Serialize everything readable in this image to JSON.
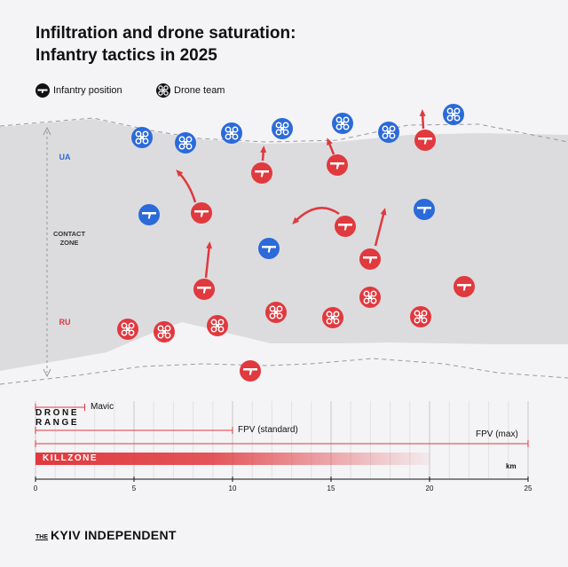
{
  "title": {
    "line1": "Infiltration and drone saturation:",
    "line2": "Infantry tactics in 2025"
  },
  "legend": {
    "infantry": {
      "label": "Infantry position",
      "icon": "rifle-icon"
    },
    "drone": {
      "label": "Drone team",
      "icon": "quadcopter-icon"
    }
  },
  "zones": {
    "ua": "UA",
    "contact_line1": "CONTACT",
    "contact_line2": "ZONE",
    "ru": "RU"
  },
  "colors": {
    "ua": "#2b6ad9",
    "ru": "#e0393e",
    "zone": "#dcdcdf",
    "background": "#f4f4f6"
  },
  "chart_data": {
    "type": "bar",
    "axis": {
      "min": 0,
      "max": 25,
      "ticks": [
        0,
        5,
        10,
        15,
        20,
        25
      ],
      "unit": "km"
    },
    "title": "DRONE RANGE",
    "ranges": [
      {
        "name": "Mavic",
        "value": 2.5
      },
      {
        "name": "FPV (standard)",
        "value": 10
      },
      {
        "name": "FPV (max)",
        "value": 25
      }
    ],
    "killzone": {
      "label": "KILLZONE",
      "start": 0,
      "end": 20
    }
  },
  "brand": {
    "the": "THE",
    "name": "KYIV INDEPENDENT"
  }
}
